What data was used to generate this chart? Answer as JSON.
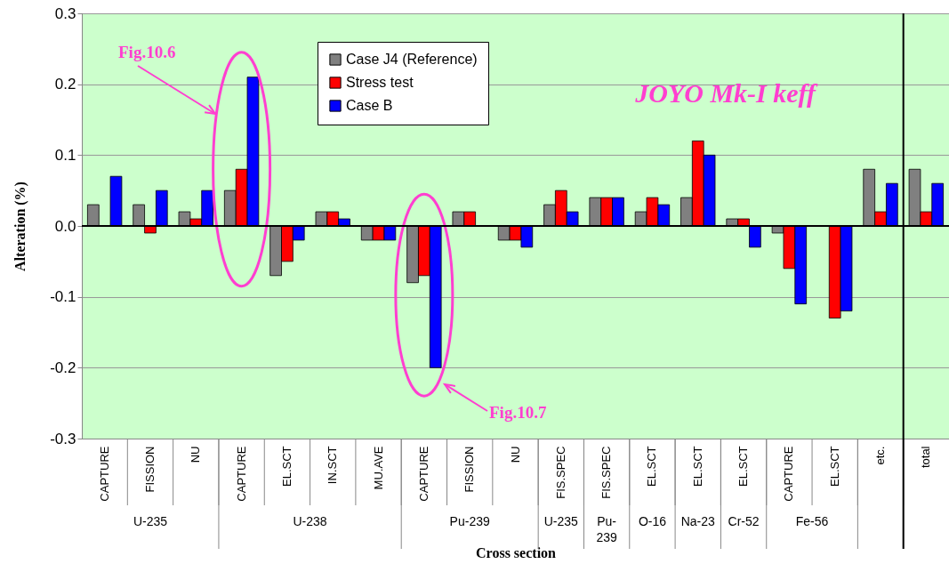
{
  "chart_data": {
    "type": "bar",
    "title": "JOYO Mk-I  keff",
    "xlabel": "Cross section",
    "ylabel": "Alteration (%)",
    "categories": [
      "CAPTURE",
      "FISSION",
      "NU",
      "CAPTURE",
      "EL.SCT",
      "IN.SCT",
      "MU.AVE",
      "CAPTURE",
      "FISSION",
      "NU",
      "FIS.SPEC",
      "FIS.SPEC",
      "EL.SCT",
      "EL.SCT",
      "EL.SCT",
      "CAPTURE",
      "EL.SCT",
      "etc.",
      "total"
    ],
    "series": [
      {
        "name": "Case J4 (Reference)",
        "color": "#808080",
        "values": [
          0.03,
          0.03,
          0.02,
          0.05,
          -0.07,
          0.02,
          -0.02,
          -0.08,
          0.02,
          -0.02,
          0.03,
          0.04,
          0.02,
          0.04,
          0.01,
          -0.01,
          null,
          0.08,
          0.08
        ]
      },
      {
        "name": "Stress test",
        "color": "#ff0000",
        "values": [
          null,
          -0.01,
          0.01,
          0.08,
          -0.05,
          0.02,
          -0.02,
          -0.07,
          0.02,
          -0.02,
          0.05,
          0.04,
          0.04,
          0.12,
          0.01,
          -0.06,
          -0.13,
          0.02,
          0.02
        ]
      },
      {
        "name": "Case B",
        "color": "#0000ff",
        "values": [
          0.07,
          0.05,
          0.05,
          0.21,
          -0.02,
          0.01,
          -0.02,
          -0.2,
          null,
          -0.03,
          0.02,
          0.04,
          0.03,
          0.1,
          -0.03,
          -0.11,
          -0.12,
          0.06,
          0.06
        ]
      }
    ],
    "ylim": [
      -0.3,
      0.3
    ],
    "yticks": [
      -0.3,
      -0.2,
      -0.1,
      {
        "value": 0,
        "label": "0.0"
      },
      0.1,
      0.2,
      0.3
    ],
    "grid": "y",
    "legend": "top",
    "annotations": [
      "Fig.10.6",
      "Fig.10.7",
      "U-235",
      "U-238",
      "Pu-239",
      "U-235",
      "Pu-239",
      "O-16",
      "Na-23",
      "Cr-52",
      "Fe-56"
    ]
  }
}
